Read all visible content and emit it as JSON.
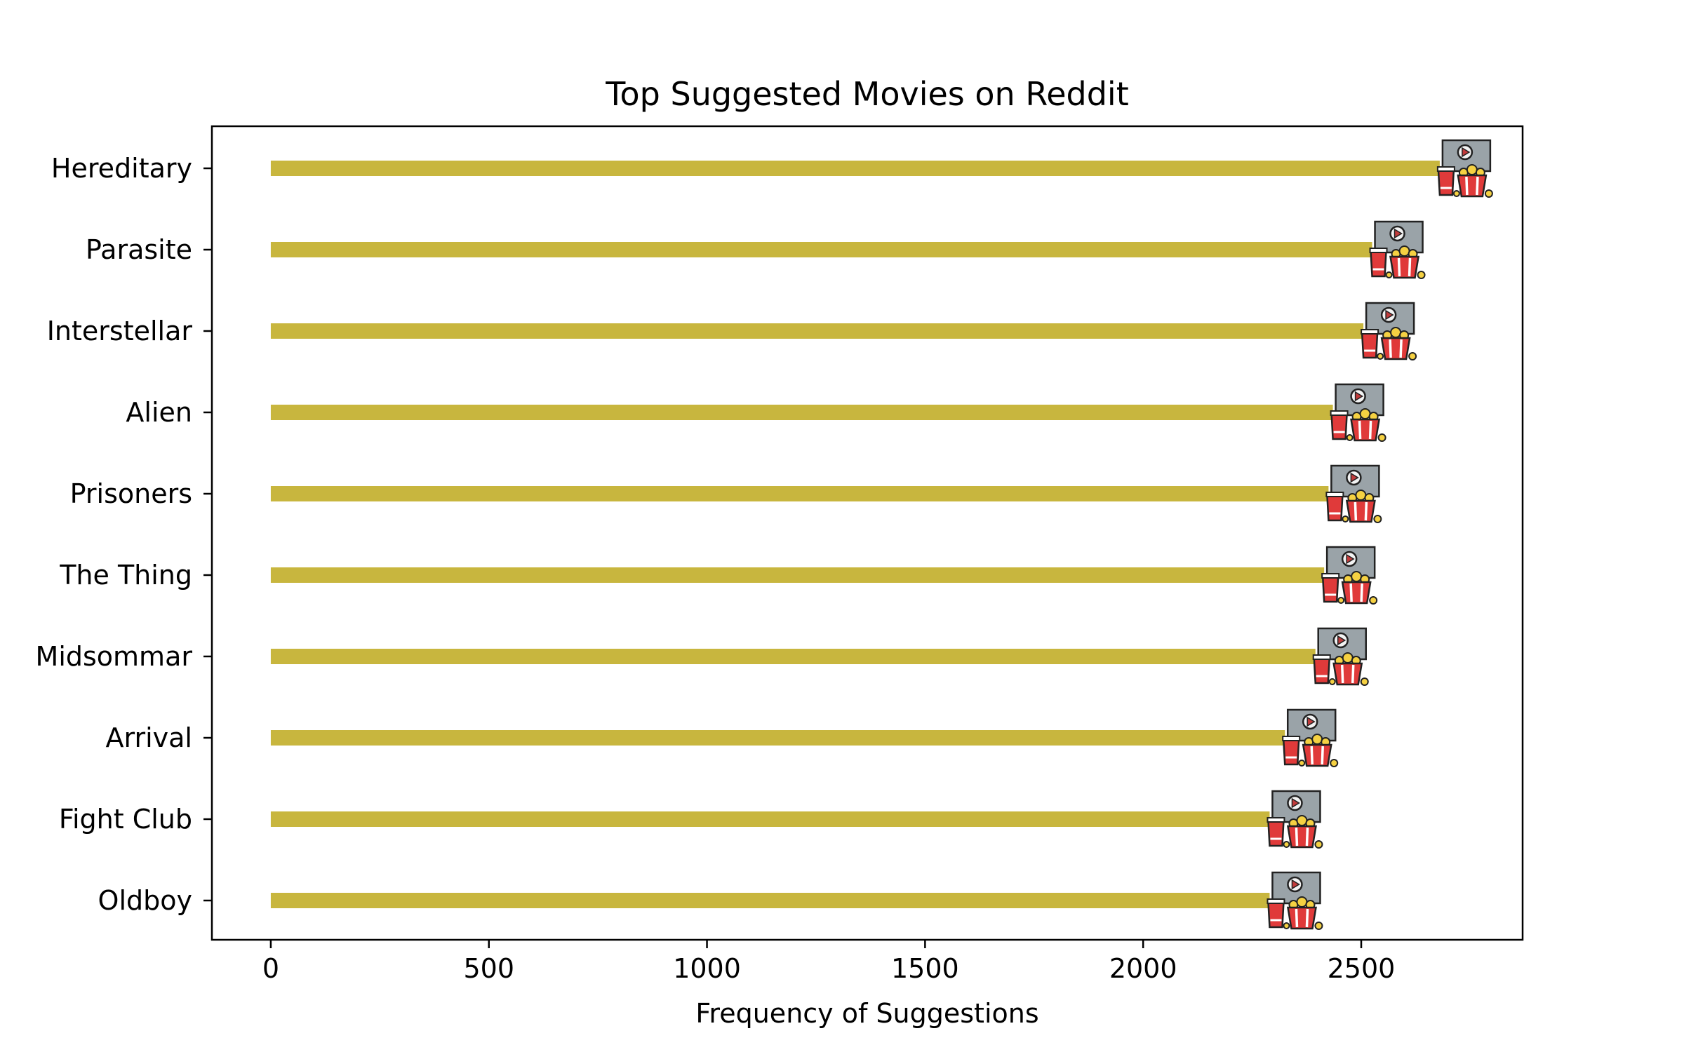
{
  "chart_data": {
    "type": "bar",
    "orientation": "horizontal",
    "title": "Top Suggested Movies on Reddit",
    "xlabel": "Frequency of Suggestions",
    "ylabel": "",
    "categories": [
      "Hereditary",
      "Parasite",
      "Interstellar",
      "Alien",
      "Prisoners",
      "The Thing",
      "Midsommar",
      "Arrival",
      "Fight Club",
      "Oldboy"
    ],
    "values": [
      2680,
      2525,
      2505,
      2435,
      2425,
      2415,
      2395,
      2325,
      2290,
      2290
    ],
    "xlim": [
      -135,
      2870
    ],
    "xticks": [
      0,
      500,
      1000,
      1500,
      2000,
      2500
    ],
    "xtick_labels": [
      "0",
      "500",
      "1000",
      "1500",
      "2000",
      "2500"
    ],
    "grid": false,
    "legend": "none",
    "bar_color": "#c8b63e",
    "marker_icon": "movie-popcorn-icon"
  }
}
